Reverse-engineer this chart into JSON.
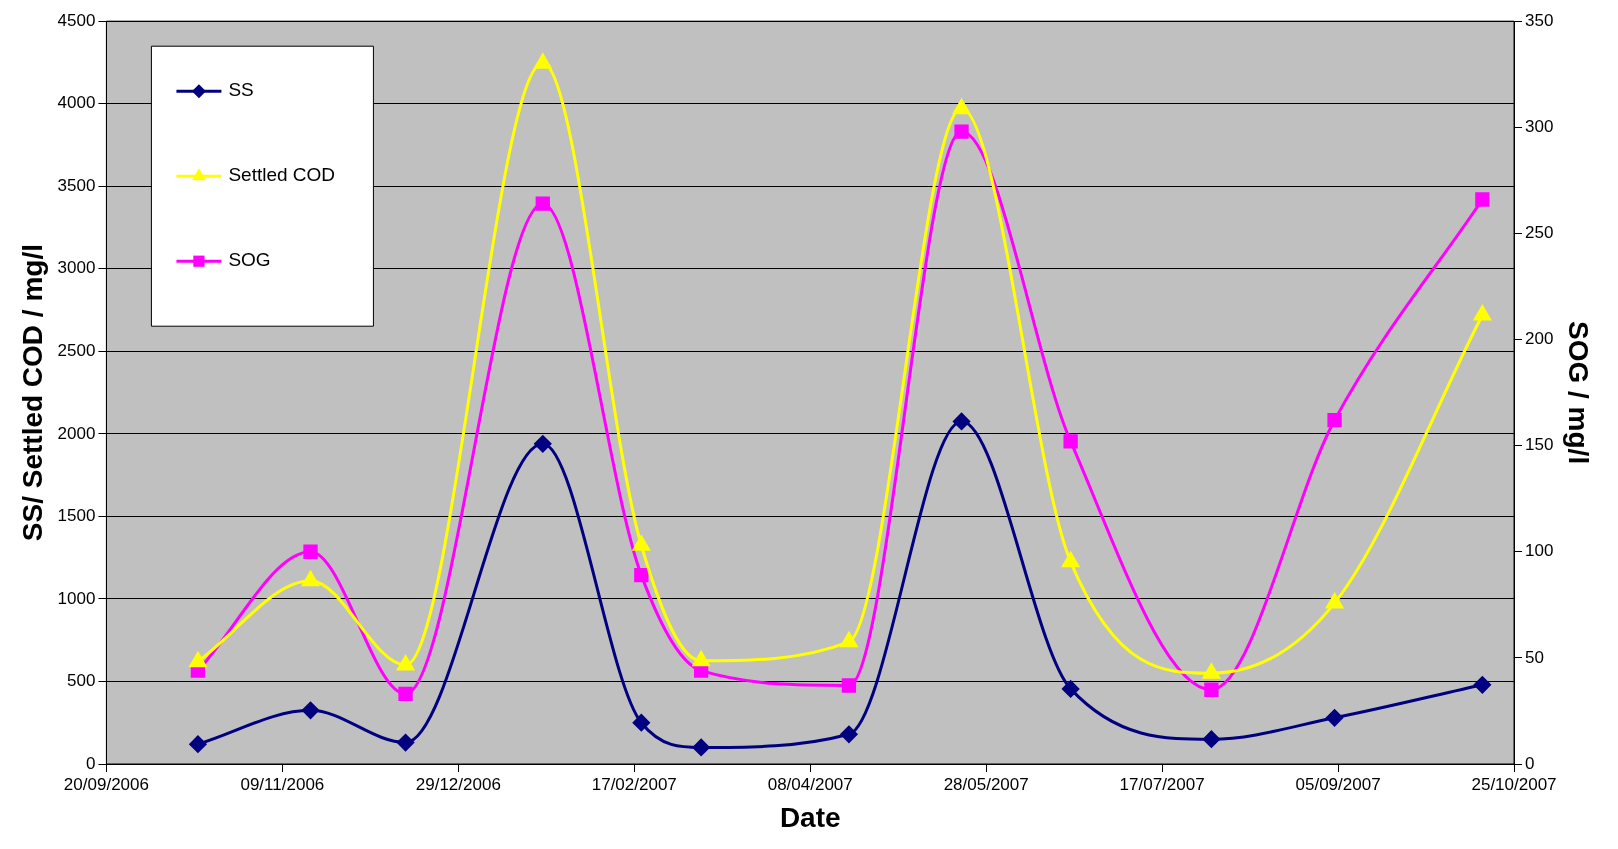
{
  "chart_data": {
    "type": "line",
    "xlabel": "Date",
    "ylabel": "SS/ Settled COD / mg/l",
    "y2label": "SOG / mg/l",
    "x": [
      "2006-10-16",
      "2006-11-17",
      "2006-12-14",
      "2007-01-22",
      "2007-02-19",
      "2007-03-08",
      "2007-04-19",
      "2007-05-21",
      "2007-06-21",
      "2007-07-31",
      "2007-09-04",
      "2007-10-16"
    ],
    "xlim": [
      "2006-09-20",
      "2007-10-25"
    ],
    "xticks": [
      {
        "value": "2006-09-20",
        "label": "20/09/2006"
      },
      {
        "value": "2006-11-09",
        "label": "09/11/2006"
      },
      {
        "value": "2006-12-29",
        "label": "29/12/2006"
      },
      {
        "value": "2007-02-17",
        "label": "17/02/2007"
      },
      {
        "value": "2007-04-08",
        "label": "08/04/2007"
      },
      {
        "value": "2007-05-28",
        "label": "28/05/2007"
      },
      {
        "value": "2007-07-17",
        "label": "17/07/2007"
      },
      {
        "value": "2007-09-05",
        "label": "05/09/2007"
      },
      {
        "value": "2007-10-25",
        "label": "25/10/2007"
      }
    ],
    "ylim": [
      0,
      4500
    ],
    "yticks": [
      0,
      500,
      1000,
      1500,
      2000,
      2500,
      3000,
      3500,
      4000,
      4500
    ],
    "y2lim": [
      0,
      350
    ],
    "y2ticks": [
      0,
      50,
      100,
      150,
      200,
      250,
      300,
      350
    ],
    "grid": "y",
    "legend": "top left",
    "line_style": "solid",
    "series": [
      {
        "name": "SS",
        "color": "#000080",
        "marker": "diamond",
        "values": [
          120,
          325,
          130,
          1940,
          250,
          100,
          180,
          2075,
          455,
          150,
          280,
          480
        ]
      },
      {
        "name": "Settled COD",
        "color": "#ffff00",
        "marker": "triangle",
        "values": [
          620,
          1110,
          600,
          4245,
          1325,
          625,
          740,
          3970,
          1225,
          550,
          975,
          2720
        ]
      },
      {
        "name": "SOG",
        "color": "#ff00ff",
        "marker": "square",
        "axis": "y2",
        "values": [
          44,
          100,
          33,
          264,
          89,
          44,
          37,
          298,
          152,
          35,
          162,
          266
        ]
      }
    ]
  }
}
